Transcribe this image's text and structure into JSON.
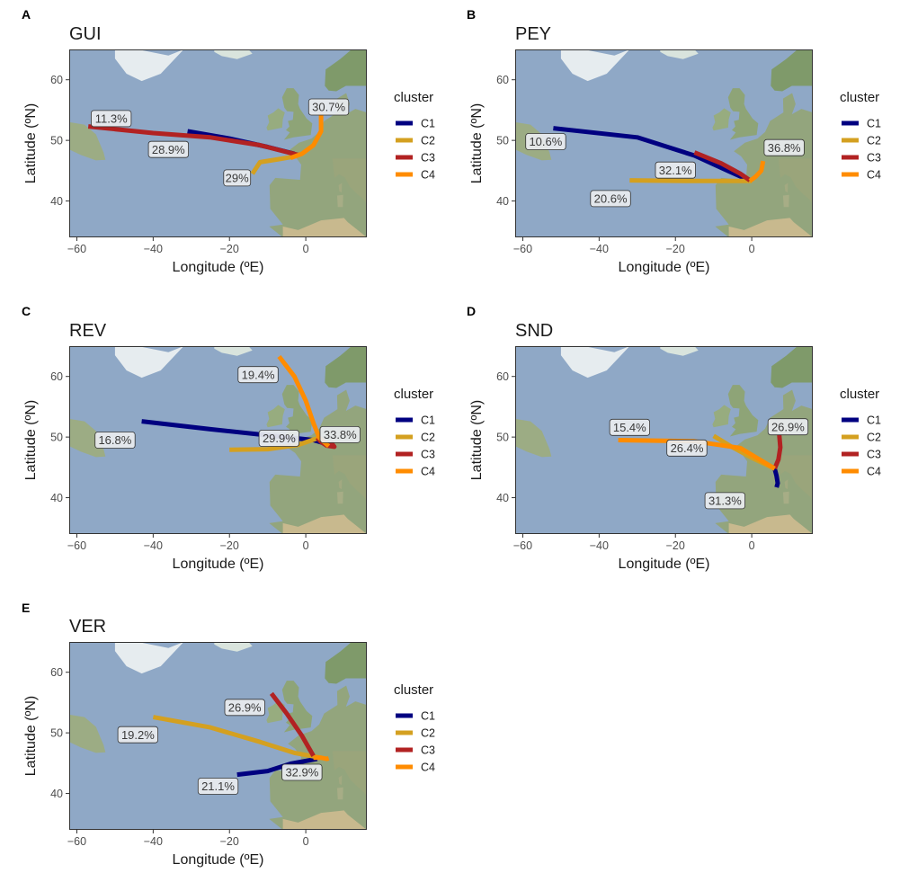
{
  "chart_data": [
    {
      "type": "line",
      "panel": "A",
      "title": "GUI",
      "xlabel": "Longitude (ºE)",
      "ylabel": "Latitude (ºN)",
      "xlim": [
        -62,
        16
      ],
      "ylim": [
        34,
        65
      ],
      "xticks": [
        "-60",
        "-40",
        "-20",
        "0"
      ],
      "yticks": [
        "40",
        "50",
        "60"
      ],
      "legend_title": "cluster",
      "series": [
        {
          "name": "C1",
          "color": "#000080",
          "points": [
            [
              -31,
              51.5
            ],
            [
              -20,
              50.3
            ],
            [
              -10,
              48.9
            ],
            [
              -3,
              47.8
            ]
          ]
        },
        {
          "name": "C2",
          "color": "#D4A020",
          "points": [
            [
              -14,
              44.5
            ],
            [
              -12,
              46.4
            ],
            [
              -7,
              46.9
            ],
            [
              -2.5,
              47.4
            ]
          ]
        },
        {
          "name": "C3",
          "color": "#B22222",
          "points": [
            [
              -57,
              52.3
            ],
            [
              -40,
              51.2
            ],
            [
              -25,
              50.5
            ],
            [
              -12,
              49.2
            ],
            [
              -2,
              47.6
            ]
          ]
        },
        {
          "name": "C4",
          "color": "#FF8C00",
          "points": [
            [
              4,
              54.5
            ],
            [
              4,
              51.5
            ],
            [
              2,
              49.2
            ],
            [
              -1,
              47.8
            ],
            [
              -4,
              47.1
            ]
          ]
        }
      ],
      "labels": [
        {
          "series": "C1",
          "text": "11.3%",
          "x": -51,
          "y": 53.6
        },
        {
          "series": "C2",
          "text": "29%",
          "x": -18,
          "y": 43.8
        },
        {
          "series": "C3",
          "text": "28.9%",
          "x": -36,
          "y": 48.5
        },
        {
          "series": "C4",
          "text": "30.7%",
          "x": 6,
          "y": 55.5
        }
      ]
    },
    {
      "type": "line",
      "panel": "B",
      "title": "PEY",
      "xlabel": "Longitude (ºE)",
      "ylabel": "Latitude (ºN)",
      "xlim": [
        -62,
        16
      ],
      "ylim": [
        34,
        65
      ],
      "xticks": [
        "-60",
        "-40",
        "-20",
        "0"
      ],
      "yticks": [
        "40",
        "50",
        "60"
      ],
      "legend_title": "cluster",
      "series": [
        {
          "name": "C1",
          "color": "#000080",
          "points": [
            [
              -52,
              52
            ],
            [
              -30,
              50.5
            ],
            [
              -15,
              47.5
            ],
            [
              -6,
              44.9
            ],
            [
              -1,
              43.5
            ]
          ]
        },
        {
          "name": "C2",
          "color": "#D4A020",
          "points": [
            [
              -32,
              43.4
            ],
            [
              -15,
              43.3
            ],
            [
              0,
              43.3
            ]
          ]
        },
        {
          "name": "C3",
          "color": "#B22222",
          "points": [
            [
              -15,
              48
            ],
            [
              -8,
              46.2
            ],
            [
              -3,
              44.5
            ],
            [
              -0.5,
              43.4
            ]
          ]
        },
        {
          "name": "C4",
          "color": "#FF8C00",
          "points": [
            [
              -0.5,
              43.3
            ],
            [
              1,
              44
            ],
            [
              2.5,
              45
            ],
            [
              3,
              46.6
            ]
          ]
        }
      ],
      "labels": [
        {
          "series": "C1",
          "text": "10.6%",
          "x": -54,
          "y": 49.8
        },
        {
          "series": "C2",
          "text": "20.6%",
          "x": -37,
          "y": 40.4
        },
        {
          "series": "C3",
          "text": "32.1%",
          "x": -20,
          "y": 45.1
        },
        {
          "series": "C4",
          "text": "36.8%",
          "x": 8.5,
          "y": 48.8
        }
      ]
    },
    {
      "type": "line",
      "panel": "C",
      "title": "REV",
      "xlabel": "Longitude (ºE)",
      "ylabel": "Latitude (ºN)",
      "xlim": [
        -62,
        16
      ],
      "ylim": [
        34,
        65
      ],
      "xticks": [
        "-60",
        "-40",
        "-20",
        "0"
      ],
      "yticks": [
        "40",
        "50",
        "60"
      ],
      "legend_title": "cluster",
      "series": [
        {
          "name": "C1",
          "color": "#000080",
          "points": [
            [
              -43,
              52.6
            ],
            [
              -25,
              51.3
            ],
            [
              -10,
              50.3
            ],
            [
              2,
              49.5
            ],
            [
              7,
              48.6
            ]
          ]
        },
        {
          "name": "C2",
          "color": "#D4A020",
          "points": [
            [
              -20,
              47.9
            ],
            [
              -10,
              48
            ],
            [
              -2,
              48.7
            ],
            [
              3,
              49.8
            ]
          ]
        },
        {
          "name": "C3",
          "color": "#B22222",
          "points": [
            [
              3,
              49.9
            ],
            [
              4,
              49.2
            ],
            [
              5.5,
              48.6
            ],
            [
              7.5,
              48.4
            ],
            [
              6.5,
              49.2
            ]
          ]
        },
        {
          "name": "C4",
          "color": "#FF8C00",
          "points": [
            [
              -7,
              63.3
            ],
            [
              -3,
              60
            ],
            [
              0,
              56
            ],
            [
              2,
              52.3
            ],
            [
              3.5,
              49.9
            ],
            [
              6,
              48.5
            ]
          ]
        }
      ],
      "labels": [
        {
          "series": "C1",
          "text": "16.8%",
          "x": -50,
          "y": 49.5
        },
        {
          "series": "C2",
          "text": "29.9%",
          "x": -7,
          "y": 49.8
        },
        {
          "series": "C3",
          "text": "33.8%",
          "x": 9,
          "y": 50.4
        },
        {
          "series": "C4",
          "text": "19.4%",
          "x": -12.5,
          "y": 60.3
        }
      ]
    },
    {
      "type": "line",
      "panel": "D",
      "title": "SND",
      "xlabel": "Longitude (ºE)",
      "ylabel": "Latitude (ºN)",
      "xlim": [
        -62,
        16
      ],
      "ylim": [
        34,
        65
      ],
      "xticks": [
        "-60",
        "-40",
        "-20",
        "0"
      ],
      "yticks": [
        "40",
        "50",
        "60"
      ],
      "legend_title": "cluster",
      "series": [
        {
          "name": "C1",
          "color": "#000080",
          "points": [
            [
              6,
              44.8
            ],
            [
              6.5,
              43.6
            ],
            [
              6.8,
              42.4
            ],
            [
              6.5,
              41.7
            ]
          ]
        },
        {
          "name": "C2",
          "color": "#D4A020",
          "points": [
            [
              -10,
              50.2
            ],
            [
              -5,
              48.3
            ],
            [
              0,
              46.6
            ],
            [
              6,
              44.8
            ]
          ]
        },
        {
          "name": "C3",
          "color": "#B22222",
          "points": [
            [
              6,
              44.8
            ],
            [
              7,
              46.3
            ],
            [
              7.5,
              48.3
            ],
            [
              7.2,
              50.4
            ]
          ]
        },
        {
          "name": "C4",
          "color": "#FF8C00",
          "points": [
            [
              -35,
              49.5
            ],
            [
              -15,
              49.3
            ],
            [
              -3,
              48.2
            ],
            [
              6,
              44.8
            ]
          ]
        }
      ],
      "labels": [
        {
          "series": "C1",
          "text": "31.3%",
          "x": -7,
          "y": 39.5
        },
        {
          "series": "C2",
          "text": "26.4%",
          "x": -17,
          "y": 48.2
        },
        {
          "series": "C3",
          "text": "26.9%",
          "x": 9.5,
          "y": 51.7
        },
        {
          "series": "C4",
          "text": "15.4%",
          "x": -32,
          "y": 51.6
        }
      ]
    },
    {
      "type": "line",
      "panel": "E",
      "title": "VER",
      "xlabel": "Longitude (ºE)",
      "ylabel": "Latitude (ºN)",
      "xlim": [
        -62,
        16
      ],
      "ylim": [
        34,
        65
      ],
      "xticks": [
        "-60",
        "-40",
        "-20",
        "0"
      ],
      "yticks": [
        "40",
        "50",
        "60"
      ],
      "legend_title": "cluster",
      "series": [
        {
          "name": "C1",
          "color": "#000080",
          "points": [
            [
              -18,
              43.1
            ],
            [
              -10,
              43.7
            ],
            [
              -4,
              44.9
            ],
            [
              3,
              45.7
            ]
          ]
        },
        {
          "name": "C2",
          "color": "#D4A020",
          "points": [
            [
              -40,
              52.6
            ],
            [
              -25,
              50.9
            ],
            [
              -12,
              48.5
            ],
            [
              -3,
              46.7
            ],
            [
              4,
              45.9
            ]
          ]
        },
        {
          "name": "C3",
          "color": "#B22222",
          "points": [
            [
              -9,
              56.5
            ],
            [
              -5,
              53.2
            ],
            [
              -1,
              49.5
            ],
            [
              2,
              46.2
            ]
          ]
        },
        {
          "name": "C4",
          "color": "#FF8C00",
          "points": [
            [
              2,
              45.9
            ],
            [
              4,
              45.9
            ],
            [
              5.5,
              45.7
            ],
            [
              6,
              45.8
            ]
          ]
        }
      ],
      "labels": [
        {
          "series": "C1",
          "text": "21.1%",
          "x": -23,
          "y": 41.2
        },
        {
          "series": "C2",
          "text": "19.2%",
          "x": -44,
          "y": 49.7
        },
        {
          "series": "C3",
          "text": "26.9%",
          "x": -16,
          "y": 54.2
        },
        {
          "series": "C4",
          "text": "32.9%",
          "x": -1,
          "y": 43.5
        }
      ]
    }
  ]
}
